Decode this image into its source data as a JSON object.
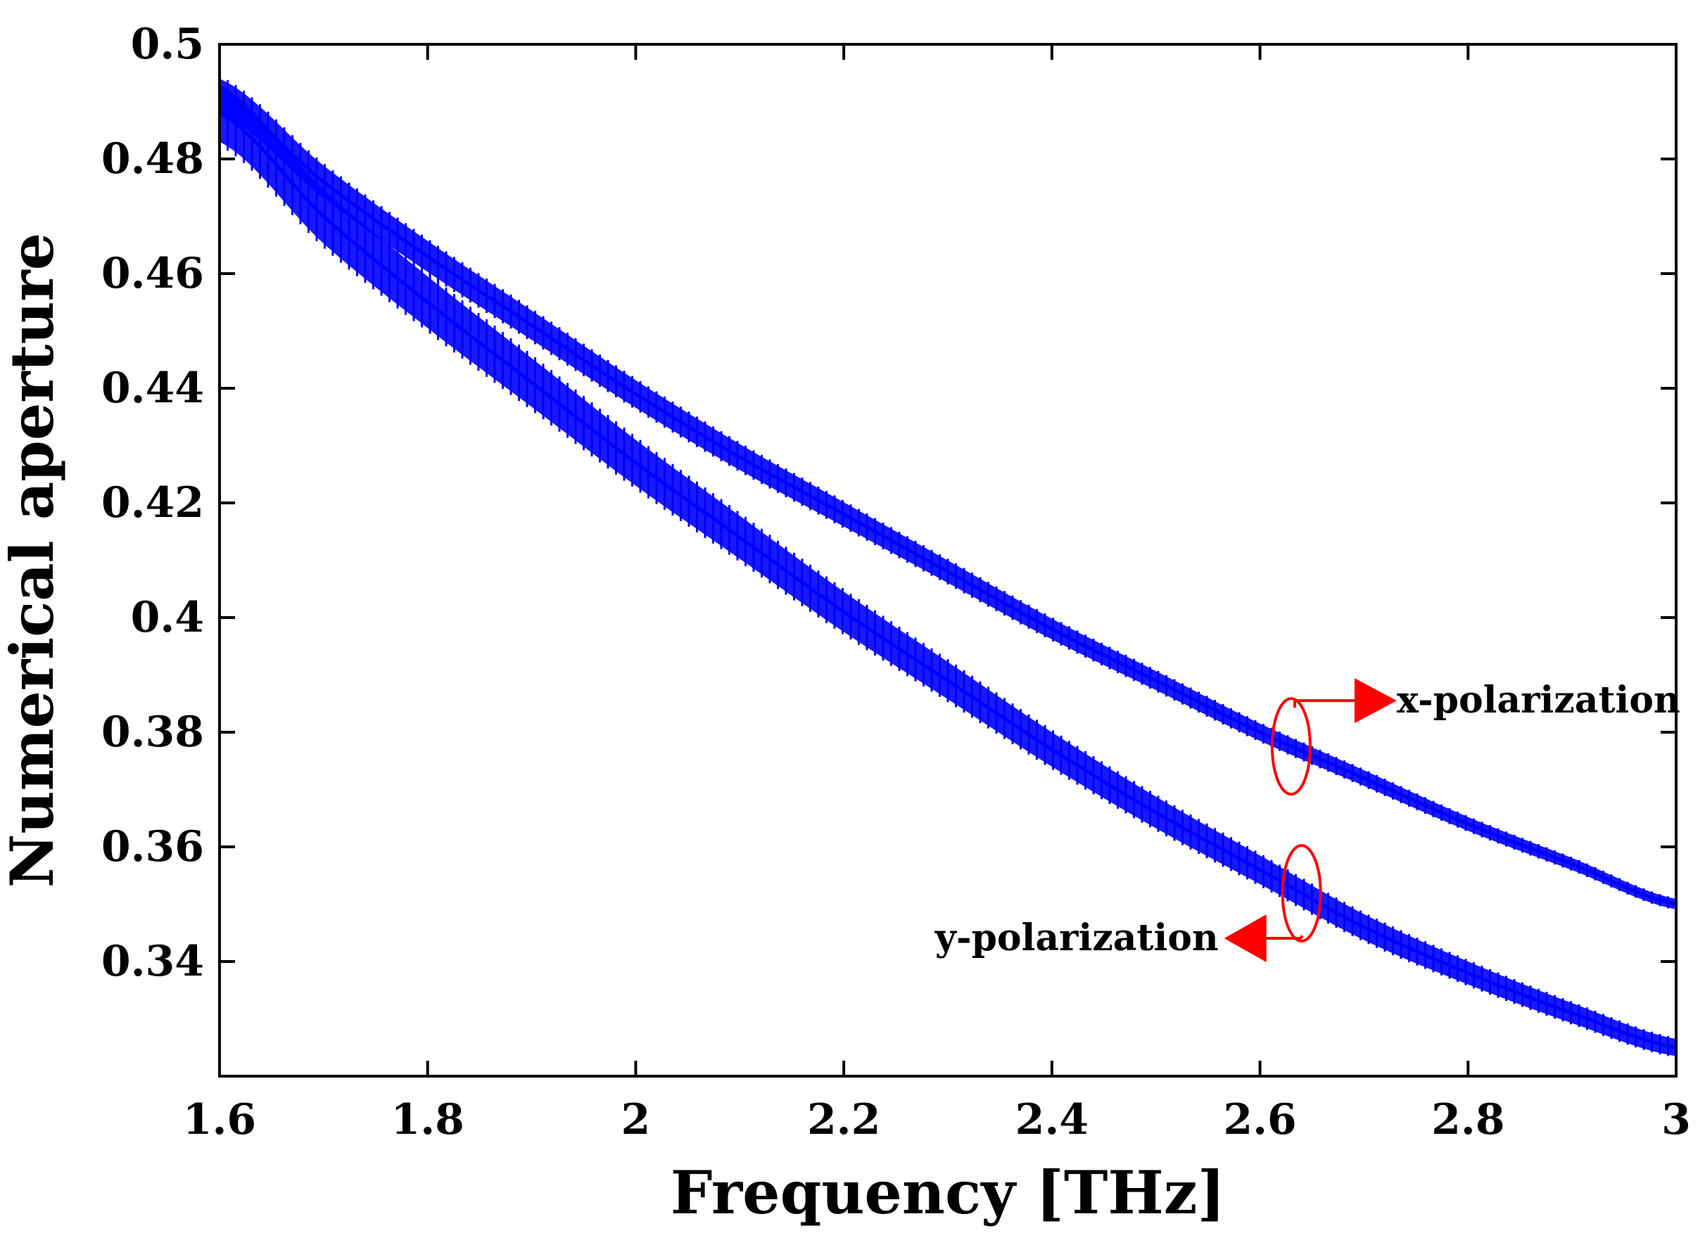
{
  "chart_data": {
    "type": "line",
    "title": "",
    "xlabel": "Frequency [THz]",
    "ylabel": "Numerical aperture",
    "xlim": [
      1.6,
      3.0
    ],
    "ylim": [
      0.32,
      0.5
    ],
    "xticks": [
      1.6,
      1.8,
      2.0,
      2.2,
      2.4,
      2.6,
      2.8,
      3.0
    ],
    "xtick_labels": [
      "1.6",
      "1.8",
      "2",
      "2.2",
      "2.4",
      "2.6",
      "2.8",
      "3"
    ],
    "yticks": [
      0.34,
      0.36,
      0.38,
      0.4,
      0.42,
      0.44,
      0.46,
      0.48,
      0.5
    ],
    "ytick_labels": [
      "0.34",
      "0.36",
      "0.38",
      "0.4",
      "0.42",
      "0.44",
      "0.46",
      "0.48",
      "0.5"
    ],
    "grid": false,
    "series": [
      {
        "name": "x-polarization",
        "color": "#0000ff",
        "x": [
          1.6,
          1.7,
          1.8,
          1.9,
          2.0,
          2.1,
          2.2,
          2.3,
          2.4,
          2.5,
          2.6,
          2.7,
          2.8,
          2.9,
          3.0
        ],
        "y": [
          0.491,
          0.476,
          0.463,
          0.451,
          0.439,
          0.428,
          0.418,
          0.408,
          0.398,
          0.389,
          0.38,
          0.372,
          0.364,
          0.357,
          0.35
        ],
        "band_width": 0.003
      },
      {
        "name": "y-polarization",
        "color": "#0000ff",
        "x": [
          1.6,
          1.7,
          1.8,
          1.9,
          2.0,
          2.1,
          2.2,
          2.3,
          2.4,
          2.5,
          2.6,
          2.7,
          2.8,
          2.9,
          3.0
        ],
        "y": [
          0.488,
          0.47,
          0.455,
          0.441,
          0.427,
          0.414,
          0.401,
          0.389,
          0.377,
          0.366,
          0.356,
          0.346,
          0.338,
          0.331,
          0.325
        ],
        "band_width": 0.005
      }
    ],
    "annotations": [
      {
        "text": "x-polarization",
        "color": "#ff0000",
        "target_series": "x-polarization",
        "at_x": 2.63,
        "arrow": "right"
      },
      {
        "text": "y-polarization",
        "color": "#ff0000",
        "target_series": "y-polarization",
        "at_x": 2.64,
        "arrow": "left"
      }
    ]
  }
}
